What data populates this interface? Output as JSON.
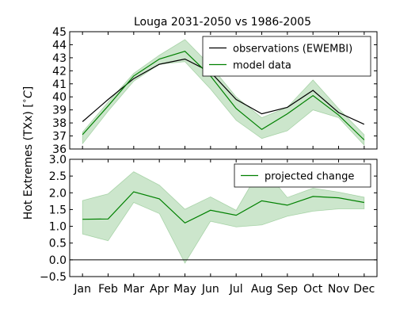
{
  "chart_data": {
    "title": "Louga 2031-2050 vs 1986-2005",
    "ylabel": "Hot Extremes (TXx) [$^\\circ C$]",
    "categories": [
      "Jan",
      "Feb",
      "Mar",
      "Apr",
      "May",
      "Jun",
      "Jul",
      "Aug",
      "Sep",
      "Oct",
      "Nov",
      "Dec"
    ],
    "panels": [
      {
        "type": "line",
        "ylim": [
          36,
          45
        ],
        "yticks": [
          "36",
          "37",
          "38",
          "39",
          "40",
          "41",
          "42",
          "43",
          "44",
          "45"
        ],
        "legend_position": "top-right",
        "series": [
          {
            "name": "observations (EWEMBI)",
            "color": "#000000",
            "values": [
              38.1,
              39.8,
              41.4,
              42.5,
              42.9,
              41.9,
              39.8,
              38.7,
              39.2,
              40.5,
              38.8,
              37.9
            ]
          },
          {
            "name": "model data",
            "color": "#008000",
            "values": [
              37.1,
              39.3,
              41.6,
              42.9,
              43.5,
              41.6,
              39.1,
              37.5,
              38.7,
              40.1,
              38.6,
              36.7
            ],
            "band_low": [
              36.4,
              38.9,
              41.2,
              42.5,
              42.7,
              40.6,
              38.2,
              36.8,
              37.4,
              39.0,
              38.4,
              36.3
            ],
            "band_high": [
              37.3,
              39.6,
              41.8,
              43.2,
              44.4,
              42.4,
              40.0,
              38.4,
              39.2,
              41.3,
              39.1,
              37.1
            ]
          }
        ]
      },
      {
        "type": "line",
        "ylim": [
          -0.5,
          3.0
        ],
        "yticks": [
          "−0.5",
          "0.0",
          "0.5",
          "1.0",
          "1.5",
          "2.0",
          "2.5",
          "3.0"
        ],
        "legend_position": "top-right",
        "zero_line": true,
        "series": [
          {
            "name": "projected change",
            "color": "#008000",
            "values": [
              1.21,
              1.22,
              2.03,
              1.82,
              1.1,
              1.48,
              1.33,
              1.76,
              1.63,
              1.89,
              1.85,
              1.71
            ],
            "band_low": [
              0.77,
              0.57,
              1.71,
              1.38,
              -0.1,
              1.15,
              0.98,
              1.04,
              1.3,
              1.45,
              1.52,
              1.52
            ],
            "band_high": [
              1.77,
              1.97,
              2.63,
              2.23,
              1.51,
              1.88,
              1.48,
              2.79,
              1.86,
              2.14,
              2.02,
              1.87
            ]
          }
        ]
      }
    ]
  }
}
